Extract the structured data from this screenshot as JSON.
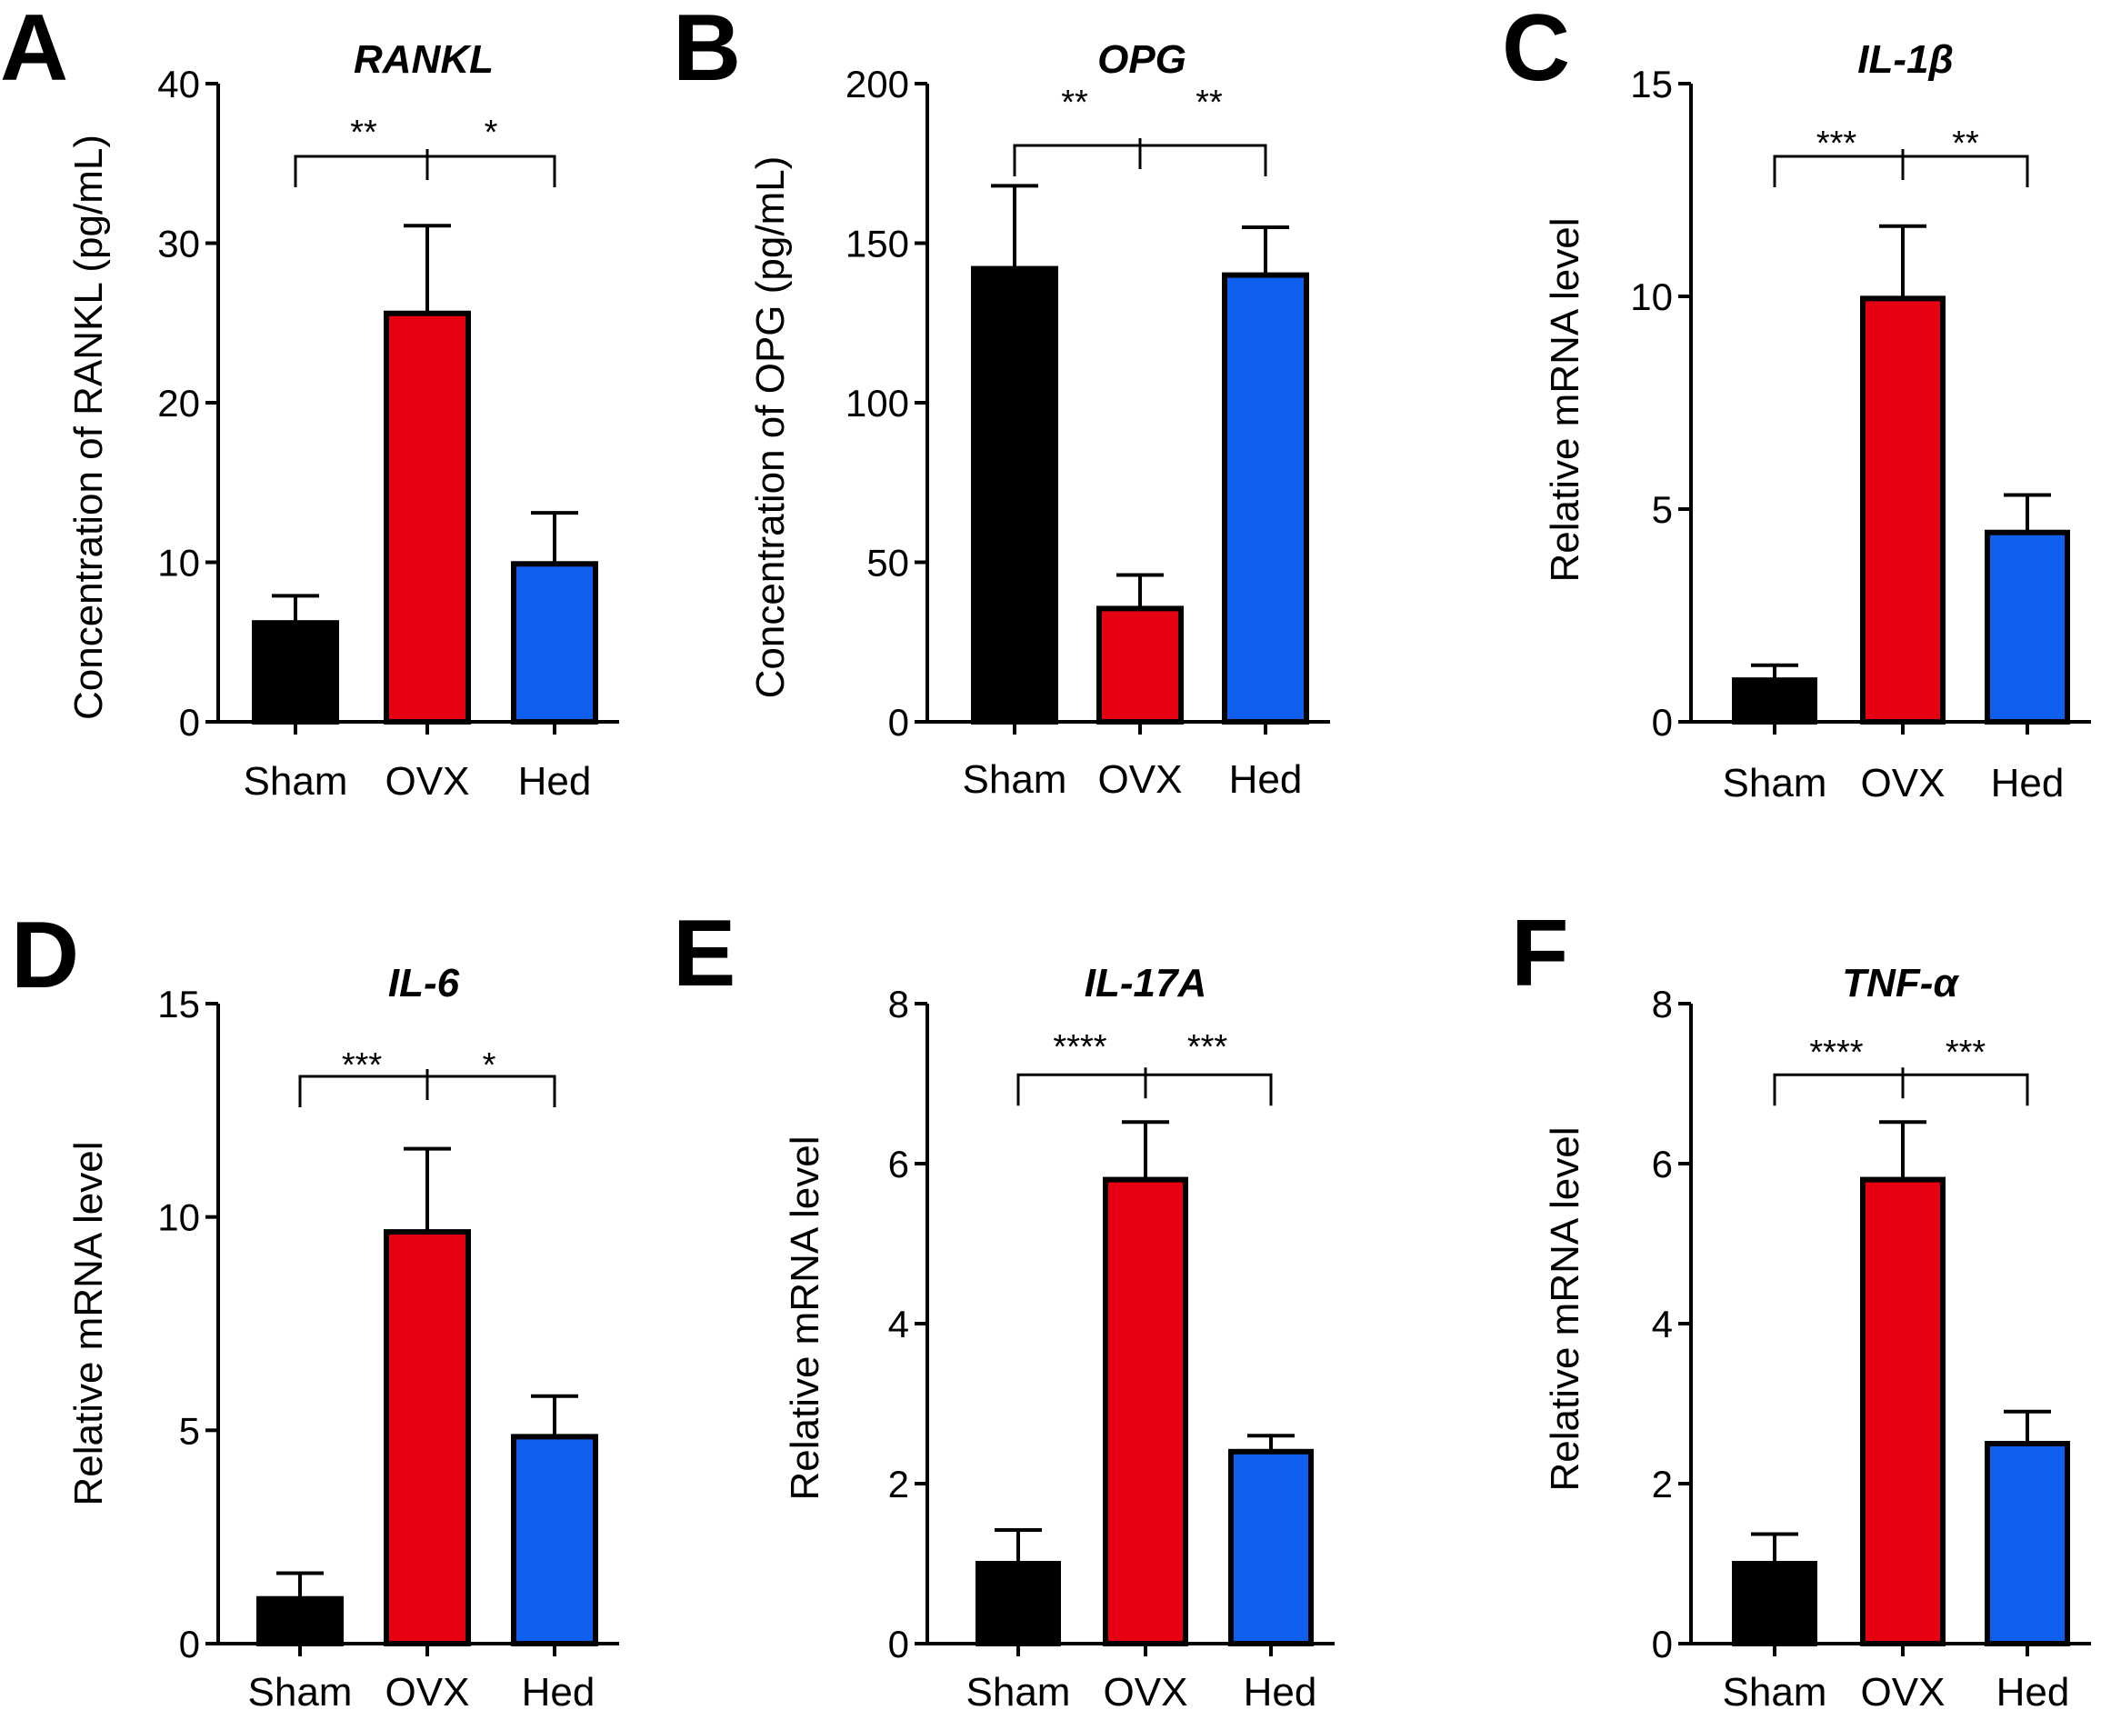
{
  "colors": {
    "Sham": "#000000",
    "OVX": "#e60012",
    "Hed": "#1060f0",
    "outline": "#000000"
  },
  "chart_data": [
    {
      "panel": "A",
      "type": "bar",
      "title": "RANKL",
      "ylabel": "Concentration of RANKL (pg/mL)",
      "xlabel": "",
      "categories": [
        "Sham",
        "OVX",
        "Hed"
      ],
      "values": [
        6.2,
        25.6,
        9.9
      ],
      "errors": [
        1.7,
        5.5,
        3.2
      ],
      "ylim": [
        0,
        40
      ],
      "yticks": [
        0,
        10,
        20,
        30,
        40
      ],
      "significance": {
        "left": "**",
        "right": "*"
      }
    },
    {
      "panel": "B",
      "type": "bar",
      "title": "OPG",
      "ylabel": "Concentration of OPG (pg/mL)",
      "xlabel": "",
      "categories": [
        "Sham",
        "OVX",
        "Hed"
      ],
      "values": [
        142,
        35.5,
        140
      ],
      "errors": [
        26,
        10.5,
        15
      ],
      "ylim": [
        0,
        200
      ],
      "yticks": [
        0,
        50,
        100,
        150,
        200
      ],
      "significance": {
        "left": "**",
        "right": "**"
      }
    },
    {
      "panel": "C",
      "type": "bar",
      "title": "IL-1β",
      "ylabel": "Relative mRNA level",
      "xlabel": "",
      "categories": [
        "Sham",
        "OVX",
        "Hed"
      ],
      "values": [
        0.98,
        9.95,
        4.45
      ],
      "errors": [
        0.35,
        1.7,
        0.88
      ],
      "ylim": [
        0,
        15
      ],
      "yticks": [
        0,
        5,
        10,
        15
      ],
      "significance": {
        "left": "***",
        "right": "**"
      }
    },
    {
      "panel": "D",
      "type": "bar",
      "title": "IL-6",
      "ylabel": "Relative mRNA level",
      "xlabel": "",
      "categories": [
        "Sham",
        "OVX",
        "Hed"
      ],
      "values": [
        1.05,
        9.65,
        4.85
      ],
      "errors": [
        0.6,
        1.95,
        0.95
      ],
      "ylim": [
        0,
        15
      ],
      "yticks": [
        0,
        5,
        10,
        15
      ],
      "significance": {
        "left": "***",
        "right": "*"
      }
    },
    {
      "panel": "E",
      "type": "bar",
      "title": "IL-17A",
      "ylabel": "Relative mRNA level",
      "xlabel": "",
      "categories": [
        "Sham",
        "OVX",
        "Hed"
      ],
      "values": [
        1.0,
        5.8,
        2.4
      ],
      "errors": [
        0.42,
        0.72,
        0.2
      ],
      "ylim": [
        0,
        8
      ],
      "yticks": [
        0,
        2,
        4,
        6,
        8
      ],
      "significance": {
        "left": "****",
        "right": "***"
      }
    },
    {
      "panel": "F",
      "type": "bar",
      "title": "TNF-α",
      "ylabel": "Relative mRNA level",
      "xlabel": "",
      "categories": [
        "Sham",
        "OVX",
        "Hed"
      ],
      "values": [
        1.0,
        5.8,
        2.5
      ],
      "errors": [
        0.37,
        0.72,
        0.4
      ],
      "ylim": [
        0,
        8
      ],
      "yticks": [
        0,
        2,
        4,
        6,
        8
      ],
      "significance": {
        "left": "****",
        "right": "***"
      }
    }
  ]
}
